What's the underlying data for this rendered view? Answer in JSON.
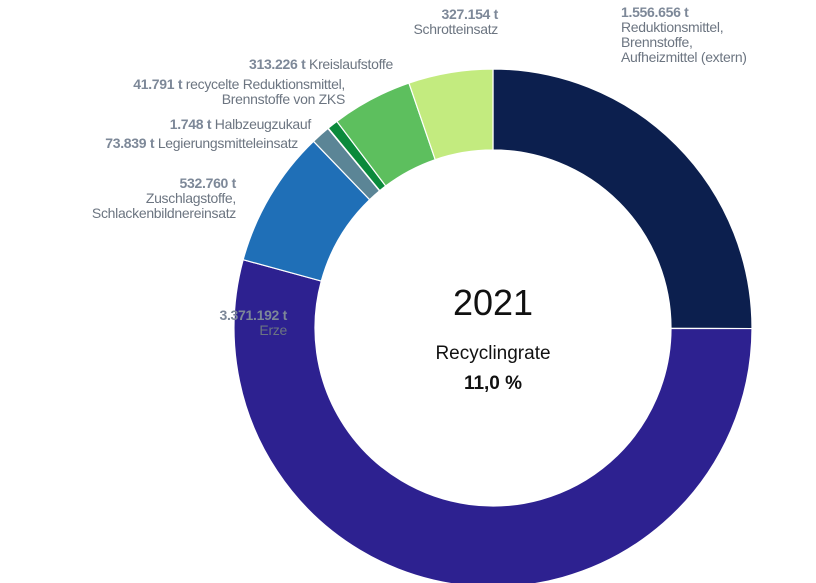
{
  "chart_data": {
    "type": "donut",
    "categories": [
      "Reduktionsmittel,\nBrennstoffe,\nAufheizmittel (extern)",
      "Erze",
      "Zuschlagstoffe,\nSchlackenbildnereinsatz",
      "Legierungsmitteleinsatz",
      "Halbzeugzukauf",
      "recycelte Reduktionsmittel,\nBrennstoffe von ZKS",
      "Kreislaufstoffe",
      "Schrotteinsatz"
    ],
    "values": [
      1556656,
      3371192,
      532760,
      73839,
      1748,
      41791,
      313226,
      327154
    ],
    "value_labels": [
      "1.556.656 t",
      "3.371.192 t",
      "532.760 t",
      "73.839 t",
      "1.748 t",
      "41.791 t",
      "313.226 t",
      "327.154 t"
    ],
    "colors": [
      "#0c1f4e",
      "#2d2190",
      "#1f6fb7",
      "#5b8596",
      "#17a59d",
      "#0b8a3b",
      "#5dbf5e",
      "#c3eb7f"
    ],
    "center": {
      "year": "2021",
      "label": "Recyclingrate",
      "rate": "11,0 %"
    }
  }
}
